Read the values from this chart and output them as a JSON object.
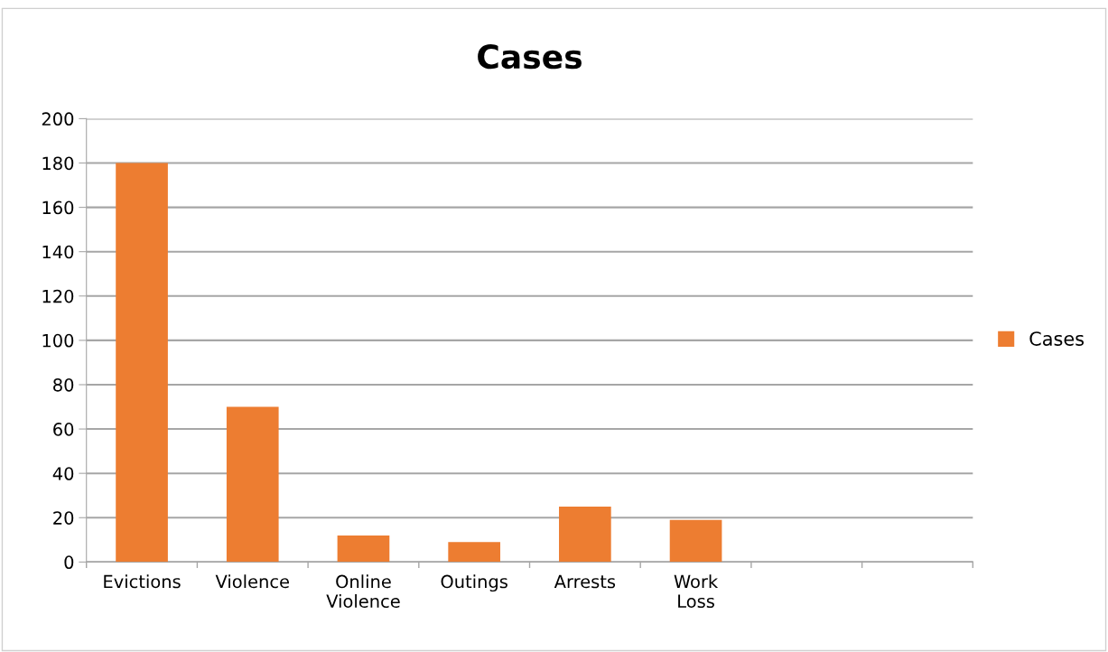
{
  "chart_data": {
    "type": "bar",
    "title": "Cases",
    "categories": [
      "Evictions",
      "Violence",
      "Online\nViolence",
      "Outings",
      "Arrests",
      "Work\nLoss",
      null,
      null
    ],
    "series": [
      {
        "name": "Cases",
        "color": "#ed7d31",
        "values": [
          180,
          70,
          12,
          9,
          25,
          19,
          null,
          null
        ]
      }
    ],
    "ylim": [
      0,
      200
    ],
    "yticks": [
      0,
      20,
      40,
      60,
      80,
      100,
      120,
      140,
      160,
      180,
      200
    ],
    "grid": "y",
    "legend": "right"
  }
}
